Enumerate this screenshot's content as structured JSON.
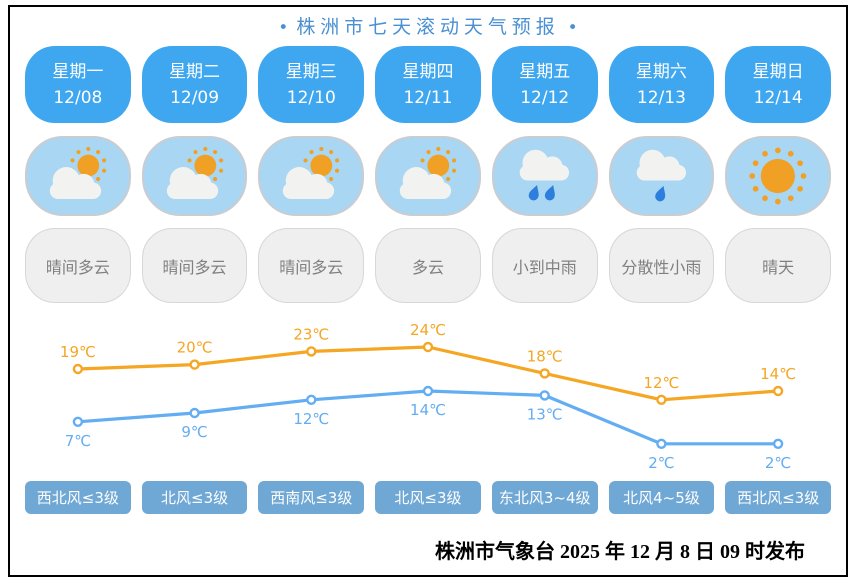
{
  "title": {
    "bullet": "•",
    "text": "株洲市七天滚动天气预报"
  },
  "days": [
    {
      "weekday": "星期一",
      "date": "12/08",
      "condition": "晴间多云",
      "icon": "sun-cloud",
      "wind": "西北风≤3级",
      "high": 19,
      "low": 7
    },
    {
      "weekday": "星期二",
      "date": "12/09",
      "condition": "晴间多云",
      "icon": "sun-cloud",
      "wind": "北风≤3级",
      "high": 20,
      "low": 9
    },
    {
      "weekday": "星期三",
      "date": "12/10",
      "condition": "晴间多云",
      "icon": "sun-cloud",
      "wind": "西南风≤3级",
      "high": 23,
      "low": 12
    },
    {
      "weekday": "星期四",
      "date": "12/11",
      "condition": "多云",
      "icon": "sun-cloud",
      "wind": "北风≤3级",
      "high": 24,
      "low": 14
    },
    {
      "weekday": "星期五",
      "date": "12/12",
      "condition": "小到中雨",
      "icon": "cloud-rain-2",
      "wind": "东北风3~4级",
      "high": 18,
      "low": 13
    },
    {
      "weekday": "星期六",
      "date": "12/13",
      "condition": "分散性小雨",
      "icon": "cloud-rain-1",
      "wind": "北风4~5级",
      "high": 12,
      "low": 2
    },
    {
      "weekday": "星期日",
      "date": "12/14",
      "condition": "晴天",
      "icon": "sun",
      "wind": "西北风≤3级",
      "high": 14,
      "low": 2
    }
  ],
  "chart_data": {
    "type": "line",
    "x": [
      "12/08",
      "12/09",
      "12/10",
      "12/11",
      "12/12",
      "12/13",
      "12/14"
    ],
    "unit": "℃",
    "series": [
      {
        "name": "high",
        "values": [
          19,
          20,
          23,
          24,
          18,
          12,
          14
        ],
        "color": "#F5A623",
        "label_position": "above"
      },
      {
        "name": "low",
        "values": [
          7,
          9,
          12,
          14,
          13,
          2,
          2
        ],
        "color": "#63ADF2",
        "label_position": "below"
      }
    ],
    "ylim": [
      0,
      26
    ],
    "grid": false,
    "legend": false
  },
  "footer": {
    "text": "株洲市气象台 2025 年 12 月 8 日 09 时发布"
  },
  "colors": {
    "title-color": "#4A90D2",
    "day-tile-bg": "#3EA7F0",
    "icon-tile-bg": "#A9D6F2",
    "icon-tile-border": "#C9CDD1",
    "desc-tile-bg": "#EFEFEF",
    "desc-tile-border": "#D7D7D7",
    "desc-text": "#808080",
    "wind-tile-bg": "#6FA7D5",
    "sun": "#F0A125",
    "cloud": "#F2F3F1",
    "rain-drop": "#2E7FDD",
    "frame-border": "#000000",
    "footer-text": "#000000"
  }
}
